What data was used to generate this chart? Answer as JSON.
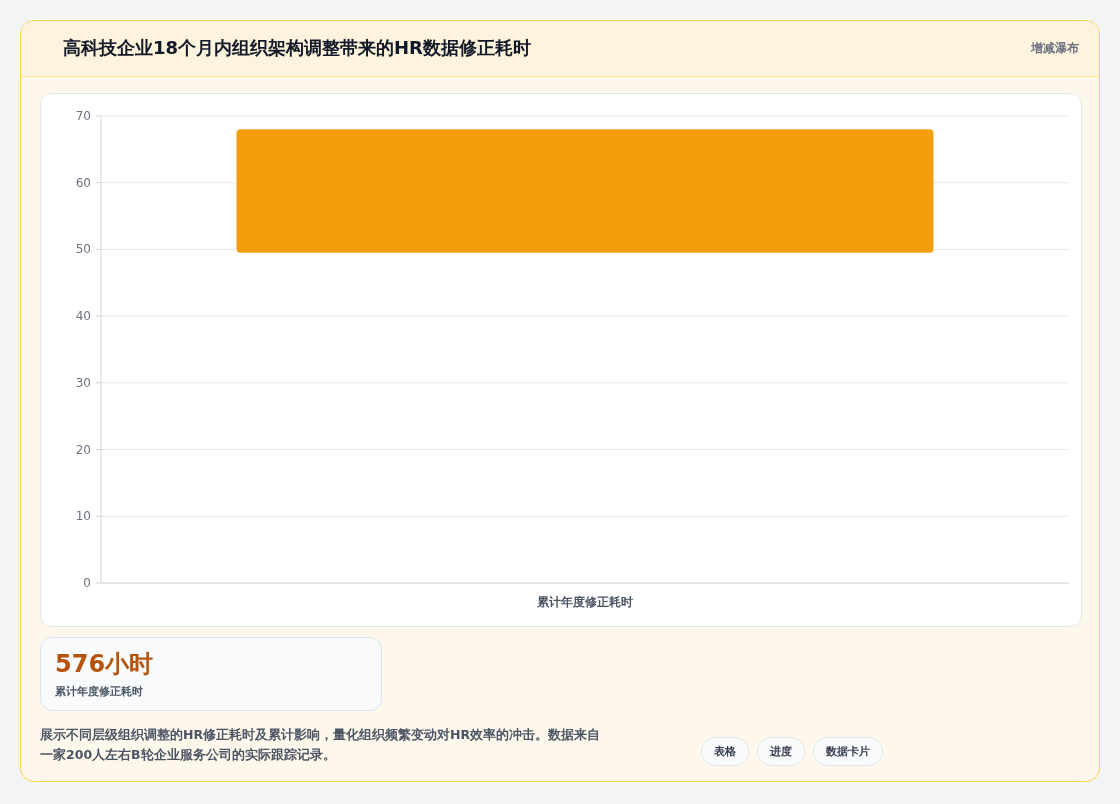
{
  "chart_data": {
    "type": "bar",
    "title": "高科技企业18个月内组织架构调整带来的HR数据修正耗时",
    "subtitle": "增减瀑布",
    "categories": [
      "累计年度修正耗时"
    ],
    "base": [
      49.5
    ],
    "values": [
      18.5
    ],
    "color": "#f59e0b",
    "ylim": [
      0,
      70
    ],
    "yticks": [
      0,
      10,
      20,
      30,
      40,
      50,
      60,
      70
    ],
    "grid": "y",
    "annotations": [
      "576小时",
      "累计年度修正耗时",
      "展示不同层级组织调整的HR修正耗时及累计影响，量化组织频繁变动对HR效率的冲击。数据来自一家200人左右B轮企业服务公司的实际跟踪记录。",
      "表格",
      "进度",
      "数据卡片"
    ]
  }
}
